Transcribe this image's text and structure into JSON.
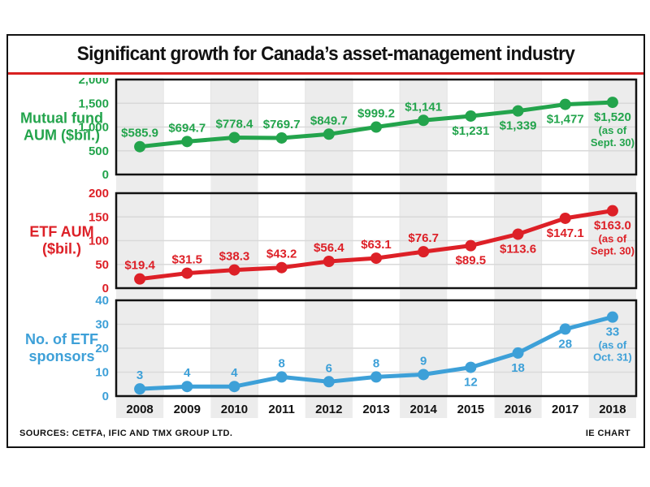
{
  "title": "Significant growth for Canada’s asset-management industry",
  "footer": {
    "sources": "SOURCES: CETFA, IFIC AND TMX GROUP LTD.",
    "credit": "IE CHART"
  },
  "colors": {
    "green": "#23a44c",
    "red": "#dd2027",
    "blue": "#3da0d8",
    "band": "#ececec",
    "grid": "#d9d9d9",
    "vgrid": "#e4e4e4",
    "frame": "#121212",
    "title_rule": "#d92120",
    "x_label": "#121212"
  },
  "categories": [
    "2008",
    "2009",
    "2010",
    "2011",
    "2012",
    "2013",
    "2014",
    "2015",
    "2016",
    "2017",
    "2018"
  ],
  "chart_data": [
    {
      "type": "line",
      "name": "Mutual fund AUM ($bil.)",
      "label_lines": [
        "Mutual fund",
        "AUM ($bil.)"
      ],
      "color_key": "green",
      "ylim": [
        0,
        2000
      ],
      "ytick_labels": [
        "2,000",
        "1,500",
        "1,000",
        "500",
        "0"
      ],
      "values": [
        585.9,
        694.7,
        778.4,
        769.7,
        849.7,
        999.2,
        1141,
        1231,
        1339,
        1477,
        1520
      ],
      "value_labels": [
        "$585.9",
        "$694.7",
        "$778.4",
        "$769.7",
        "$849.7",
        "$999.2",
        "$1,141",
        "$1,231",
        "$1,339",
        "$1,477",
        "$1,520"
      ],
      "last_point_note": [
        "(as of",
        "Sept. 30)"
      ],
      "labels_below_from": 7,
      "grid": true,
      "legend": "none"
    },
    {
      "type": "line",
      "name": "ETF AUM ($bil.)",
      "label_lines": [
        "ETF AUM",
        "($bil.)"
      ],
      "color_key": "red",
      "ylim": [
        0,
        200
      ],
      "ytick_labels": [
        "200",
        "150",
        "100",
        "50",
        "0"
      ],
      "values": [
        19.4,
        31.5,
        38.3,
        43.2,
        56.4,
        63.1,
        76.7,
        89.5,
        113.6,
        147.1,
        163.0
      ],
      "value_labels": [
        "$19.4",
        "$31.5",
        "$38.3",
        "$43.2",
        "$56.4",
        "$63.1",
        "$76.7",
        "$89.5",
        "$113.6",
        "$147.1",
        "$163.0"
      ],
      "last_point_note": [
        "(as of",
        "Sept. 30)"
      ],
      "labels_below_from": 7,
      "grid": true,
      "legend": "none"
    },
    {
      "type": "line",
      "name": "No. of ETF sponsors",
      "label_lines": [
        "No. of ETF",
        "sponsors"
      ],
      "color_key": "blue",
      "ylim": [
        0,
        40
      ],
      "ytick_labels": [
        "40",
        "30",
        "20",
        "10",
        "0"
      ],
      "values": [
        3,
        4,
        4,
        8,
        6,
        8,
        9,
        12,
        18,
        28,
        33
      ],
      "value_labels": [
        "3",
        "4",
        "4",
        "8",
        "6",
        "8",
        "9",
        "12",
        "18",
        "28",
        "33"
      ],
      "last_point_note": [
        "(as of",
        "Oct. 31)"
      ],
      "labels_below_from": 7,
      "grid": true,
      "legend": "none"
    }
  ]
}
